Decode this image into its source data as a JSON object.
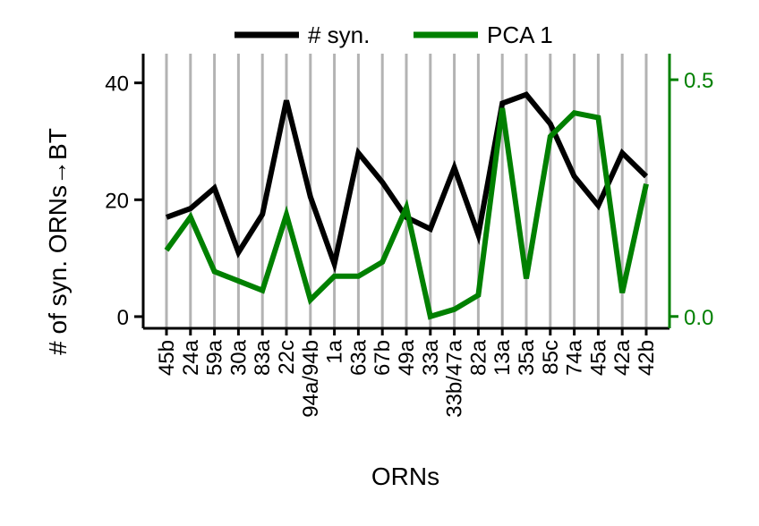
{
  "chart_data": {
    "type": "line",
    "title": "",
    "xlabel": "ORNs",
    "ylabel": "# of syn. ORNs→BT",
    "categories": [
      "45b",
      "24a",
      "59a",
      "30a",
      "83a",
      "22c",
      "94a/94b",
      "1a",
      "63a",
      "67b",
      "49a",
      "33a",
      "33b/47a",
      "82a",
      "13a",
      "35a",
      "85c",
      "74a",
      "45a",
      "42a",
      "42b"
    ],
    "series": [
      {
        "name": "# syn.",
        "axis": "left",
        "color": "#000000",
        "values": [
          17,
          18.5,
          22,
          11,
          17.5,
          37,
          20.5,
          9,
          28,
          23,
          17,
          15,
          25.5,
          14,
          36.5,
          38,
          33,
          24,
          19,
          28,
          24
        ]
      },
      {
        "name": "PCA 1",
        "axis": "right",
        "color": "#008000",
        "values": [
          0.14,
          0.21,
          0.095,
          0.075,
          0.055,
          0.215,
          0.035,
          0.085,
          0.085,
          0.115,
          0.23,
          0.0,
          0.015,
          0.045,
          0.44,
          0.08,
          0.38,
          0.43,
          0.42,
          0.05,
          0.28
        ]
      }
    ],
    "yleft": {
      "lim": [
        -2,
        45
      ],
      "ticks": [
        0,
        20,
        40
      ],
      "tick_labels": [
        "0",
        "20",
        "40"
      ]
    },
    "yright": {
      "lim": [
        -0.025,
        0.555
      ],
      "ticks": [
        0.0,
        0.5
      ],
      "tick_labels": [
        "0.0",
        "0.5"
      ],
      "color": "#008000"
    },
    "grid": {
      "x": true,
      "y": false,
      "color": "#b3b3b3"
    },
    "legend": {
      "placement": "top-center",
      "entries": [
        "# syn.",
        "PCA 1"
      ]
    }
  }
}
